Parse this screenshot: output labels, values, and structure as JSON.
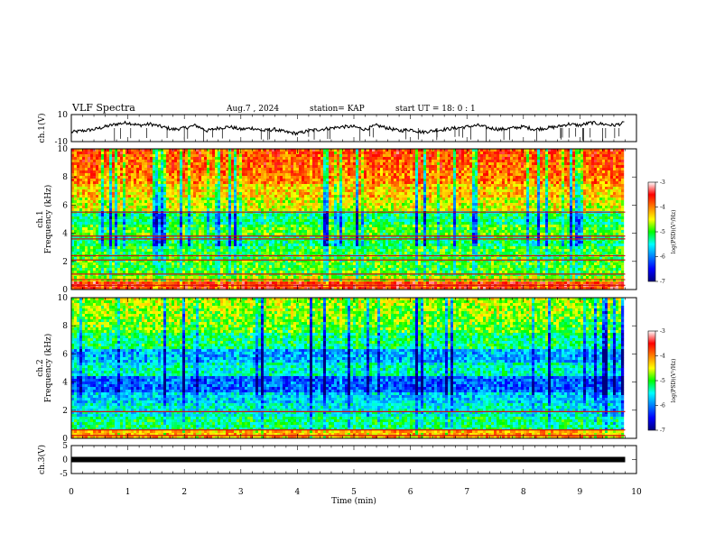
{
  "header": {
    "title": "VLF Spectra",
    "date": "Aug.7  , 2024",
    "station": "station= KAP",
    "start": "start  UT  =   18: 0  : 1"
  },
  "chart_data": [
    {
      "type": "line",
      "panel": "ch1-waveform",
      "ylabel": "ch.1(V)",
      "ylim": [
        -10,
        10
      ],
      "yticks": [
        "10",
        "-10"
      ],
      "xlim": [
        0,
        10
      ],
      "trace_color": "#000000",
      "x": [
        0.0,
        0.2,
        0.4,
        0.6,
        0.8,
        1.0,
        1.2,
        1.4,
        1.6,
        1.8,
        2.0,
        2.2,
        2.4,
        2.6,
        2.8,
        3.0,
        3.2,
        3.4,
        3.6,
        3.8,
        4.0,
        4.2,
        4.4,
        4.6,
        4.8,
        5.0,
        5.2,
        5.4,
        5.6,
        5.8,
        6.0,
        6.2,
        6.4,
        6.6,
        6.8,
        7.0,
        7.2,
        7.4,
        7.6,
        7.8,
        8.0,
        8.2,
        8.4,
        8.6,
        8.8,
        9.0,
        9.2,
        9.4,
        9.6,
        9.8
      ],
      "y": [
        -3,
        -2,
        -1,
        1,
        3,
        4,
        2,
        3,
        1,
        -1,
        0,
        2,
        -2,
        0,
        1,
        -1,
        0,
        -2,
        -1,
        -3,
        -4,
        -2,
        -1,
        0,
        1,
        1,
        -1,
        2,
        0,
        -2,
        -1,
        -3,
        -2,
        -1,
        0,
        1,
        2,
        0,
        -1,
        0,
        1,
        -1,
        0,
        1,
        3,
        2,
        4,
        3,
        2,
        4
      ]
    },
    {
      "type": "heatmap",
      "panel": "ch1-spectrogram",
      "ylabel": "ch.1\nFrequency (kHz)",
      "ylim": [
        0,
        10
      ],
      "yticks": [
        "0",
        "2",
        "4",
        "6",
        "8",
        "10"
      ],
      "xlim": [
        0,
        10
      ],
      "colorbar": {
        "label": "log(PSD)(V²/Hz)",
        "range": [
          -7,
          -3
        ],
        "ticks": [
          "-3",
          "-4",
          "-5",
          "-6",
          "-7"
        ]
      }
    },
    {
      "type": "heatmap",
      "panel": "ch2-spectrogram",
      "ylabel": "ch.2\nFrequency (kHz)",
      "ylim": [
        0,
        10
      ],
      "yticks": [
        "0",
        "2",
        "4",
        "6",
        "8",
        "10"
      ],
      "xlim": [
        0,
        10
      ],
      "colorbar": {
        "label": "log(PSD)(V²/Hz)",
        "range": [
          -7,
          -3
        ],
        "ticks": [
          "-3",
          "-4",
          "-5",
          "-6",
          "-7"
        ]
      }
    },
    {
      "type": "line",
      "panel": "ch3-waveform",
      "ylabel": "ch.3(V)",
      "ylim": [
        -5,
        5
      ],
      "yticks": [
        "5",
        "0",
        "-5"
      ],
      "xlim": [
        0,
        10
      ],
      "xlabel": "Time  (min)",
      "xticks": [
        "0",
        "1",
        "2",
        "3",
        "4",
        "5",
        "6",
        "7",
        "8",
        "9",
        "10"
      ],
      "x": [
        0,
        9.8
      ],
      "y": [
        0,
        0
      ]
    }
  ]
}
